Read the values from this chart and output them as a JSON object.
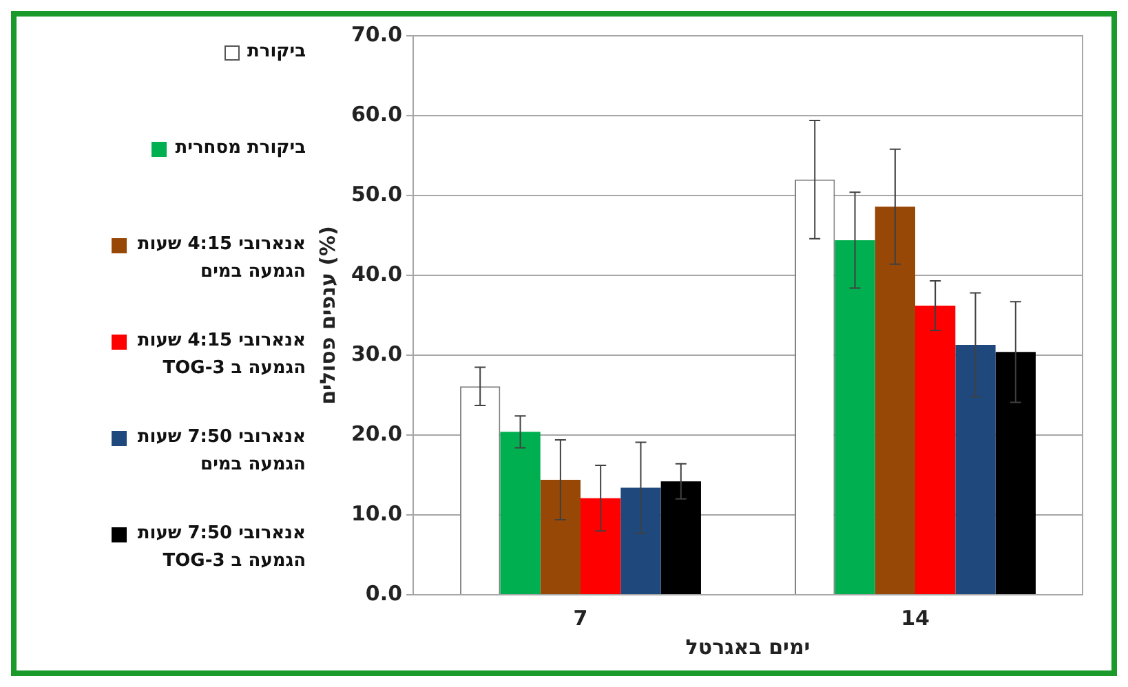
{
  "chart_data": {
    "type": "bar",
    "xlabel": "ימים באגרטל",
    "ylabel": "ענפים פסולים (%)",
    "categories": [
      "7",
      "14"
    ],
    "series": [
      {
        "name": "ביקורת",
        "color": "#ffffff",
        "values": [
          26.1,
          52.0
        ],
        "errors": [
          2.4,
          7.4
        ]
      },
      {
        "name": "ביקורת מסחרית",
        "color": "#00b050",
        "values": [
          20.4,
          44.4
        ],
        "errors": [
          2.0,
          6.0
        ]
      },
      {
        "name": "אנארובי 4:15 שעות הגמעה במים",
        "color": "#974706",
        "values": [
          14.4,
          48.6
        ],
        "errors": [
          5.0,
          7.2
        ]
      },
      {
        "name": "אנארובי 4:15 שעות הגמעה ב TOG-3",
        "color": "#ff0000",
        "values": [
          12.1,
          36.2
        ],
        "errors": [
          4.1,
          3.1
        ]
      },
      {
        "name": "אנארובי 7:50 שעות הגמעה במים",
        "color": "#1f497d",
        "values": [
          13.4,
          31.3
        ],
        "errors": [
          5.7,
          6.5
        ]
      },
      {
        "name": "אנארובי 7:50 שעות הגמעה ב TOG-3",
        "color": "#000000",
        "values": [
          14.2,
          30.4
        ],
        "errors": [
          2.2,
          6.3
        ]
      }
    ],
    "ylim": [
      0,
      70
    ],
    "yticks": [
      {
        "value": 0,
        "label": "0.0"
      },
      {
        "value": 10,
        "label": "10.0"
      },
      {
        "value": 20,
        "label": "20.0"
      },
      {
        "value": 30,
        "label": "30.0"
      },
      {
        "value": 40,
        "label": "40.0"
      },
      {
        "value": 50,
        "label": "50.0"
      },
      {
        "value": 60,
        "label": "60.0"
      },
      {
        "value": 70,
        "label": "70.0"
      }
    ],
    "grid": "y",
    "legend": "left"
  }
}
